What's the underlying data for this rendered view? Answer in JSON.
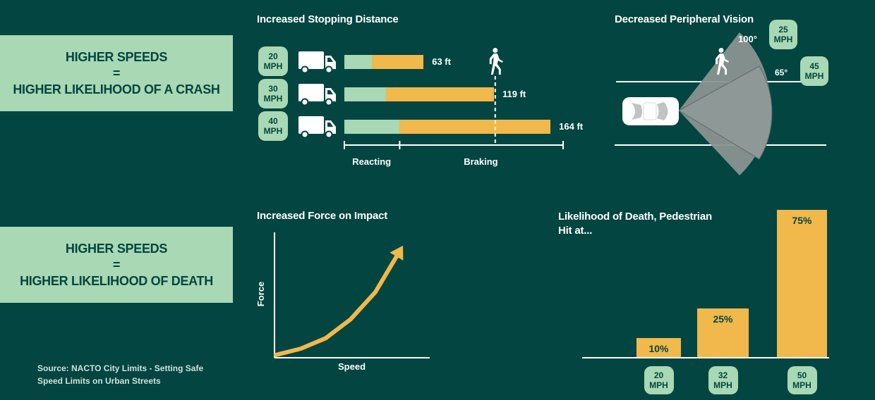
{
  "crash_panel": {
    "line1": "HIGHER SPEEDS",
    "line2": "=",
    "line3": "HIGHER LIKELIHOOD OF A CRASH"
  },
  "death_panel": {
    "line1": "HIGHER SPEEDS",
    "line2": "=",
    "line3": "HIGHER LIKELIHOOD OF DEATH"
  },
  "source": {
    "line1": "Source: NACTO City Limits - Setting Safe",
    "line2": "Speed Limits on Urban Streets"
  },
  "colors": {
    "background": "#034541",
    "mint": "#a8d8b4",
    "orange": "#f1b84b",
    "gray": "#8a9391"
  },
  "chart_data": [
    {
      "type": "bar",
      "title": "Increased Stopping Distance",
      "orientation": "horizontal",
      "stacked": true,
      "categories": [
        {
          "speed": "20",
          "unit": "MPH",
          "label": "63 ft"
        },
        {
          "speed": "30",
          "unit": "MPH",
          "label": "119 ft"
        },
        {
          "speed": "40",
          "unit": "MPH",
          "label": "164 ft"
        }
      ],
      "series": [
        {
          "name": "Reacting",
          "values": [
            22,
            33,
            44
          ]
        },
        {
          "name": "Braking",
          "values": [
            41,
            86,
            120
          ]
        }
      ],
      "xlim": [
        0,
        174
      ],
      "pedestrian_marker": 120,
      "icons": {
        "vehicle": "truck-icon",
        "pedestrian": "pedestrian-icon"
      }
    },
    {
      "type": "diagram",
      "title": "Decreased Peripheral Vision",
      "cones": [
        {
          "speed": "25",
          "unit": "MPH",
          "angle_label": "100°",
          "angle": 100
        },
        {
          "speed": "45",
          "unit": "MPH",
          "angle_label": "65°",
          "angle": 65
        }
      ],
      "icons": {
        "vehicle": "car-icon",
        "pedestrian": "pedestrian-icon"
      }
    },
    {
      "type": "line",
      "title": "Increased Force on Impact",
      "xlabel": "Speed",
      "ylabel": "Force",
      "x": [
        0,
        0.2,
        0.4,
        0.6,
        0.8,
        1.0
      ],
      "y": [
        0,
        0.06,
        0.16,
        0.34,
        0.6,
        1.0
      ],
      "xlim": [
        0,
        1.25
      ],
      "ylim": [
        0,
        1.2
      ],
      "grid": false,
      "arrow_at_end": true
    },
    {
      "type": "bar",
      "title": "Likelihood of Death, Pedestrian",
      "title_line2": "Hit at...",
      "categories": [
        {
          "speed": "20",
          "unit": "MPH"
        },
        {
          "speed": "32",
          "unit": "MPH"
        },
        {
          "speed": "50",
          "unit": "MPH"
        }
      ],
      "values": [
        10,
        25,
        75
      ],
      "value_labels": [
        "10%",
        "25%",
        "75%"
      ],
      "ylim": [
        0,
        75
      ]
    }
  ]
}
